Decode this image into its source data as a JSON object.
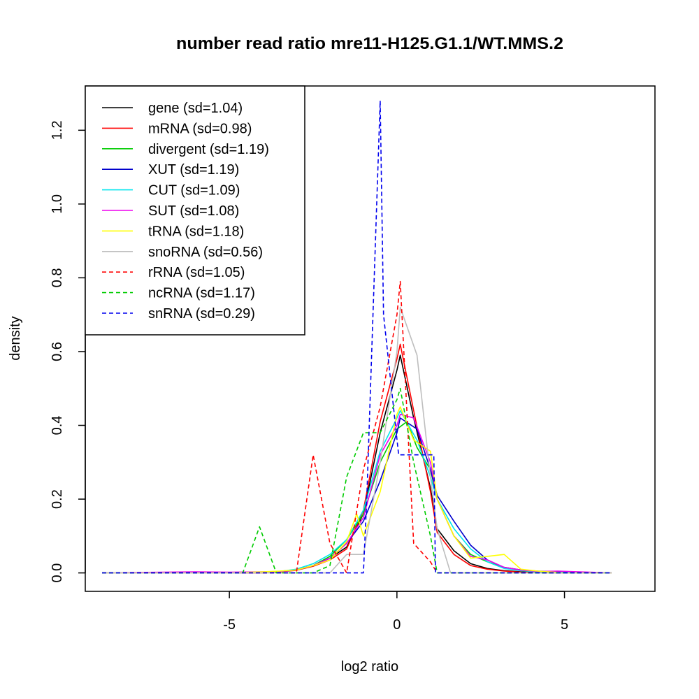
{
  "chart_data": {
    "type": "line",
    "title": "number read ratio mre11-H125.G1.1/WT.MMS.2",
    "xlabel": "log2 ratio",
    "ylabel": "density",
    "xlim": [
      -9.3,
      7.7
    ],
    "ylim": [
      -0.05,
      1.32
    ],
    "xticks": [
      -5,
      0,
      5
    ],
    "xtick_labels": [
      "-5",
      "0",
      "5"
    ],
    "yticks": [
      0,
      0.2,
      0.4,
      0.6,
      0.8,
      1.0,
      1.2
    ],
    "ytick_labels": [
      "0.0",
      "0.2",
      "0.4",
      "0.6",
      "0.8",
      "1.0",
      "1.2"
    ],
    "grid": false,
    "legend_position": "top-left",
    "series": [
      {
        "name": "gene (sd=1.04)",
        "color": "#000000",
        "dash": "solid",
        "x": [
          -8.8,
          -6,
          -5,
          -4,
          -3.5,
          -3,
          -2.5,
          -2,
          -1.5,
          -1,
          -0.5,
          0,
          0.1,
          0.5,
          1,
          1.2,
          1.7,
          2.2,
          2.7,
          3.2,
          3.7,
          4.2,
          5,
          6.4
        ],
        "y": [
          0,
          0,
          0,
          0,
          0.004,
          0.008,
          0.02,
          0.04,
          0.07,
          0.16,
          0.38,
          0.55,
          0.59,
          0.42,
          0.23,
          0.12,
          0.06,
          0.025,
          0.012,
          0.006,
          0.003,
          0.002,
          0.001,
          0
        ]
      },
      {
        "name": "mRNA (sd=0.98)",
        "color": "#ff0000",
        "dash": "solid",
        "x": [
          -8.8,
          -6,
          -5,
          -4,
          -3.5,
          -3,
          -2.5,
          -2,
          -1.5,
          -1,
          -0.5,
          0,
          0.1,
          0.5,
          1,
          1.2,
          1.7,
          2.2,
          2.7,
          3.2,
          3.7,
          4.2,
          5,
          6.4
        ],
        "y": [
          0,
          0,
          0,
          0,
          0.003,
          0.007,
          0.018,
          0.035,
          0.065,
          0.17,
          0.41,
          0.58,
          0.62,
          0.44,
          0.22,
          0.11,
          0.05,
          0.02,
          0.01,
          0.005,
          0.002,
          0.001,
          0,
          0
        ]
      },
      {
        "name": "divergent (sd=1.19)",
        "color": "#00cc00",
        "dash": "solid",
        "x": [
          -8.8,
          -6,
          -5,
          -4,
          -3.5,
          -3,
          -2.5,
          -2,
          -1.5,
          -1,
          -0.5,
          0,
          0.3,
          0.6,
          1,
          1.2,
          1.7,
          2.2,
          2.7,
          3.2,
          3.7,
          4.2,
          5,
          6.4
        ],
        "y": [
          0,
          0,
          0,
          0.002,
          0.004,
          0.008,
          0.02,
          0.045,
          0.09,
          0.16,
          0.3,
          0.39,
          0.41,
          0.34,
          0.28,
          0.2,
          0.1,
          0.05,
          0.03,
          0.015,
          0.008,
          0.004,
          0.001,
          0
        ]
      },
      {
        "name": "XUT (sd=1.19)",
        "color": "#0000cc",
        "dash": "solid",
        "x": [
          -8.8,
          -6,
          -5,
          -4,
          -3.5,
          -3,
          -2.5,
          -2,
          -1.5,
          -1,
          -0.5,
          0,
          0.1,
          0.6,
          1,
          1.2,
          1.7,
          2.2,
          2.7,
          3.2,
          3.7,
          4.2,
          5,
          6.4
        ],
        "y": [
          0,
          0,
          0,
          0.002,
          0.004,
          0.008,
          0.02,
          0.04,
          0.08,
          0.14,
          0.25,
          0.38,
          0.42,
          0.39,
          0.28,
          0.21,
          0.14,
          0.075,
          0.035,
          0.015,
          0.008,
          0.005,
          0.003,
          0
        ]
      },
      {
        "name": "CUT (sd=1.09)",
        "color": "#00e5ee",
        "dash": "solid",
        "x": [
          -8.8,
          -6,
          -5,
          -4,
          -3.5,
          -3,
          -2.5,
          -2,
          -1.5,
          -1,
          -0.5,
          0,
          0.1,
          0.6,
          1,
          1.2,
          1.7,
          2.2,
          2.7,
          3.2,
          3.7,
          4.2,
          5,
          6.4
        ],
        "y": [
          0,
          0,
          0,
          0.002,
          0.004,
          0.01,
          0.025,
          0.05,
          0.09,
          0.17,
          0.33,
          0.42,
          0.44,
          0.36,
          0.26,
          0.2,
          0.12,
          0.065,
          0.03,
          0.012,
          0.006,
          0.003,
          0.001,
          0
        ]
      },
      {
        "name": "SUT (sd=1.08)",
        "color": "#ee00ee",
        "dash": "solid",
        "x": [
          -8.8,
          -6,
          -5,
          -4,
          -3.5,
          -3,
          -2.5,
          -2,
          -1.5,
          -1,
          -0.5,
          0,
          0.1,
          0.5,
          1,
          1.2,
          1.7,
          2.2,
          2.7,
          3.2,
          3.7,
          4.2,
          4.8,
          6.4
        ],
        "y": [
          0,
          0.003,
          0.002,
          0.003,
          0.004,
          0.008,
          0.02,
          0.04,
          0.08,
          0.15,
          0.32,
          0.4,
          0.43,
          0.42,
          0.3,
          0.2,
          0.1,
          0.045,
          0.035,
          0.015,
          0.008,
          0.004,
          0.005,
          0
        ]
      },
      {
        "name": "tRNA (sd=1.18)",
        "color": "#ffff00",
        "dash": "solid",
        "x": [
          -8.8,
          -6,
          -5,
          -4,
          -3.5,
          -3,
          -2.5,
          -2,
          -1.5,
          -1.2,
          -1,
          -0.5,
          0,
          0.1,
          0.5,
          1,
          1.2,
          1.7,
          2.2,
          2.7,
          3.2,
          3.7,
          4.2,
          5,
          6.4
        ],
        "y": [
          0,
          0,
          0,
          0.003,
          0.005,
          0.008,
          0.02,
          0.035,
          0.085,
          0.16,
          0.1,
          0.22,
          0.43,
          0.45,
          0.36,
          0.33,
          0.2,
          0.1,
          0.04,
          0.045,
          0.05,
          0.01,
          0.005,
          0,
          0
        ]
      },
      {
        "name": "snoRNA (sd=0.56)",
        "color": "#bebebe",
        "dash": "solid",
        "x": [
          -8.8,
          -2,
          -1.5,
          -1,
          -0.5,
          0,
          0.1,
          0.6,
          1,
          1.2,
          1.6,
          6.4
        ],
        "y": [
          0,
          0,
          0.05,
          0.05,
          0.3,
          0.6,
          0.72,
          0.59,
          0.26,
          0.12,
          0,
          0
        ]
      },
      {
        "name": "rRNA (sd=1.05)",
        "color": "#ff0000",
        "dash": "dashed",
        "x": [
          -8.8,
          -3,
          -2.5,
          -2,
          -1.5,
          -1,
          -0.5,
          0,
          0.1,
          0.5,
          1,
          1.2,
          6.4
        ],
        "y": [
          0,
          0,
          0.32,
          0.08,
          0,
          0.28,
          0.45,
          0.7,
          0.79,
          0.08,
          0.03,
          0,
          0
        ]
      },
      {
        "name": "ncRNA (sd=1.17)",
        "color": "#00cc00",
        "dash": "dashed",
        "x": [
          -8.8,
          -4.6,
          -4.1,
          -3.6,
          -3,
          -2.5,
          -2,
          -1.5,
          -1,
          -0.5,
          0,
          0.1,
          0.5,
          1,
          1.2,
          6.4
        ],
        "y": [
          0,
          0,
          0.125,
          0,
          0,
          0,
          0.02,
          0.26,
          0.38,
          0.38,
          0.47,
          0.5,
          0.3,
          0.1,
          0,
          0
        ]
      },
      {
        "name": "snRNA (sd=0.29)",
        "color": "#0000ee",
        "dash": "dashed",
        "x": [
          -8.8,
          -1,
          -0.9,
          -0.5,
          -0.4,
          0.05,
          0.05,
          1.1,
          1.15,
          6.4
        ],
        "y": [
          0,
          0,
          0.2,
          1.28,
          0.7,
          0.32,
          0.32,
          0.32,
          0,
          0
        ]
      }
    ]
  }
}
